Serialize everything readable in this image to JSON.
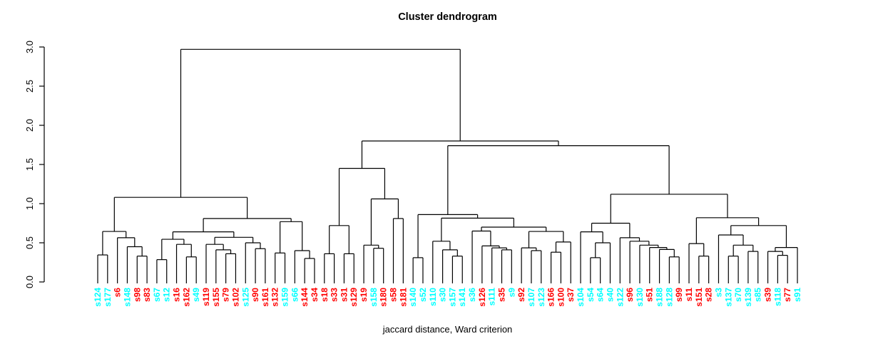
{
  "chart_data": {
    "type": "dendrogram",
    "title": "Cluster dendrogram",
    "caption": "jaccard distance, Ward criterion",
    "ylabel": "",
    "ylim": [
      0.0,
      3.0
    ],
    "y_ticks": [
      {
        "value": 0.0,
        "label": "0.0"
      },
      {
        "value": 0.5,
        "label": "0.5"
      },
      {
        "value": 1.0,
        "label": "1.0"
      },
      {
        "value": 1.5,
        "label": "1.5"
      },
      {
        "value": 2.0,
        "label": "2.0"
      },
      {
        "value": 2.5,
        "label": "2.5"
      },
      {
        "value": 3.0,
        "label": "3.0"
      }
    ],
    "palette": {
      "cyan": "#00ffff",
      "red": "#ff0000",
      "line": "#000000"
    },
    "leaves": [
      {
        "label": "s124",
        "color": "cyan"
      },
      {
        "label": "s177",
        "color": "cyan"
      },
      {
        "label": "s6",
        "color": "red"
      },
      {
        "label": "s148",
        "color": "cyan"
      },
      {
        "label": "s98",
        "color": "red"
      },
      {
        "label": "s83",
        "color": "red"
      },
      {
        "label": "s67",
        "color": "cyan"
      },
      {
        "label": "s12",
        "color": "cyan"
      },
      {
        "label": "s16",
        "color": "red"
      },
      {
        "label": "s162",
        "color": "red"
      },
      {
        "label": "s49",
        "color": "cyan"
      },
      {
        "label": "s119",
        "color": "red"
      },
      {
        "label": "s155",
        "color": "red"
      },
      {
        "label": "s79",
        "color": "red"
      },
      {
        "label": "s102",
        "color": "red"
      },
      {
        "label": "s125",
        "color": "cyan"
      },
      {
        "label": "s90",
        "color": "red"
      },
      {
        "label": "s161",
        "color": "red"
      },
      {
        "label": "s132",
        "color": "red"
      },
      {
        "label": "s159",
        "color": "cyan"
      },
      {
        "label": "s66",
        "color": "cyan"
      },
      {
        "label": "s144",
        "color": "red"
      },
      {
        "label": "s34",
        "color": "red"
      },
      {
        "label": "s18",
        "color": "red"
      },
      {
        "label": "s33",
        "color": "red"
      },
      {
        "label": "s31",
        "color": "red"
      },
      {
        "label": "s129",
        "color": "red"
      },
      {
        "label": "s19",
        "color": "red"
      },
      {
        "label": "s158",
        "color": "cyan"
      },
      {
        "label": "s180",
        "color": "red"
      },
      {
        "label": "s58",
        "color": "red"
      },
      {
        "label": "s181",
        "color": "red"
      },
      {
        "label": "s140",
        "color": "cyan"
      },
      {
        "label": "s52",
        "color": "cyan"
      },
      {
        "label": "s110",
        "color": "cyan"
      },
      {
        "label": "s30",
        "color": "cyan"
      },
      {
        "label": "s157",
        "color": "cyan"
      },
      {
        "label": "s141",
        "color": "cyan"
      },
      {
        "label": "s36",
        "color": "cyan"
      },
      {
        "label": "s126",
        "color": "red"
      },
      {
        "label": "s111",
        "color": "cyan"
      },
      {
        "label": "s35",
        "color": "red"
      },
      {
        "label": "s9",
        "color": "cyan"
      },
      {
        "label": "s92",
        "color": "red"
      },
      {
        "label": "s107",
        "color": "cyan"
      },
      {
        "label": "s123",
        "color": "cyan"
      },
      {
        "label": "s166",
        "color": "red"
      },
      {
        "label": "s100",
        "color": "red"
      },
      {
        "label": "s37",
        "color": "red"
      },
      {
        "label": "s104",
        "color": "cyan"
      },
      {
        "label": "s54",
        "color": "cyan"
      },
      {
        "label": "s64",
        "color": "cyan"
      },
      {
        "label": "s40",
        "color": "cyan"
      },
      {
        "label": "s122",
        "color": "cyan"
      },
      {
        "label": "s96",
        "color": "red"
      },
      {
        "label": "s130",
        "color": "cyan"
      },
      {
        "label": "s51",
        "color": "red"
      },
      {
        "label": "s188",
        "color": "cyan"
      },
      {
        "label": "s128",
        "color": "cyan"
      },
      {
        "label": "s99",
        "color": "red"
      },
      {
        "label": "s11",
        "color": "red"
      },
      {
        "label": "s151",
        "color": "red"
      },
      {
        "label": "s28",
        "color": "red"
      },
      {
        "label": "s3",
        "color": "cyan"
      },
      {
        "label": "s137",
        "color": "cyan"
      },
      {
        "label": "s70",
        "color": "cyan"
      },
      {
        "label": "s139",
        "color": "cyan"
      },
      {
        "label": "s85",
        "color": "cyan"
      },
      {
        "label": "s39",
        "color": "red"
      },
      {
        "label": "s118",
        "color": "cyan"
      },
      {
        "label": "s77",
        "color": "red"
      },
      {
        "label": "s91",
        "color": "cyan"
      }
    ],
    "tree": {
      "h": 2.97,
      "c": [
        {
          "h": 1.08,
          "c": [
            {
              "h": 0.645,
              "c": [
                {
                  "h": 0.345,
                  "c": [
                    "s124",
                    "s177"
                  ]
                },
                {
                  "h": 0.565,
                  "c": [
                    "s6",
                    {
                      "h": 0.45,
                      "c": [
                        "s148",
                        {
                          "h": 0.33,
                          "c": [
                            "s98",
                            "s83"
                          ]
                        }
                      ]
                    }
                  ]
                }
              ]
            },
            {
              "h": 0.81,
              "c": [
                {
                  "h": 0.64,
                  "c": [
                    {
                      "h": 0.545,
                      "c": [
                        {
                          "h": 0.285,
                          "c": [
                            "s67",
                            "s12"
                          ]
                        },
                        {
                          "h": 0.48,
                          "c": [
                            "s16",
                            {
                              "h": 0.32,
                              "c": [
                                "s162",
                                "s49"
                              ]
                            }
                          ]
                        }
                      ]
                    },
                    {
                      "h": 0.57,
                      "c": [
                        {
                          "h": 0.48,
                          "c": [
                            "s119",
                            {
                              "h": 0.41,
                              "c": [
                                "s155",
                                {
                                  "h": 0.36,
                                  "c": [
                                    "s79",
                                    "s102"
                                  ]
                                }
                              ]
                            }
                          ]
                        },
                        {
                          "h": 0.5,
                          "c": [
                            "s125",
                            {
                              "h": 0.425,
                              "c": [
                                "s90",
                                "s161"
                              ]
                            }
                          ]
                        }
                      ]
                    }
                  ]
                },
                {
                  "h": 0.77,
                  "c": [
                    {
                      "h": 0.37,
                      "c": [
                        "s132",
                        "s159"
                      ]
                    },
                    {
                      "h": 0.4,
                      "c": [
                        "s66",
                        {
                          "h": 0.3,
                          "c": [
                            "s144",
                            "s34"
                          ]
                        }
                      ]
                    }
                  ]
                }
              ]
            }
          ]
        },
        {
          "h": 1.8,
          "c": [
            {
              "h": 1.45,
              "c": [
                {
                  "h": 0.72,
                  "c": [
                    {
                      "h": 0.36,
                      "c": [
                        "s18",
                        "s33"
                      ]
                    },
                    {
                      "h": 0.36,
                      "c": [
                        "s31",
                        "s129"
                      ]
                    }
                  ]
                },
                {
                  "h": 1.06,
                  "c": [
                    {
                      "h": 0.47,
                      "c": [
                        "s19",
                        {
                          "h": 0.43,
                          "c": [
                            "s158",
                            "s180"
                          ]
                        }
                      ]
                    },
                    {
                      "h": 0.81,
                      "c": [
                        "s58",
                        "s181"
                      ]
                    }
                  ]
                }
              ]
            },
            {
              "h": 1.74,
              "c": [
                {
                  "h": 0.86,
                  "c": [
                    {
                      "h": 0.31,
                      "c": [
                        "s140",
                        "s52"
                      ]
                    },
                    {
                      "h": 0.815,
                      "c": [
                        {
                          "h": 0.52,
                          "c": [
                            "s110",
                            {
                              "h": 0.41,
                              "c": [
                                "s30",
                                {
                                  "h": 0.33,
                                  "c": [
                                    "s157",
                                    "s141"
                                  ]
                                }
                              ]
                            }
                          ]
                        },
                        {
                          "h": 0.7,
                          "c": [
                            {
                              "h": 0.65,
                              "c": [
                                "s36",
                                {
                                  "h": 0.46,
                                  "c": [
                                    "s126",
                                    {
                                      "h": 0.435,
                                      "c": [
                                        "s111",
                                        {
                                          "h": 0.41,
                                          "c": [
                                            "s35",
                                            "s9"
                                          ]
                                        }
                                      ]
                                    }
                                  ]
                                }
                              ]
                            },
                            {
                              "h": 0.645,
                              "c": [
                                {
                                  "h": 0.435,
                                  "c": [
                                    "s92",
                                    {
                                      "h": 0.4,
                                      "c": [
                                        "s107",
                                        "s123"
                                      ]
                                    }
                                  ]
                                },
                                {
                                  "h": 0.51,
                                  "c": [
                                    {
                                      "h": 0.38,
                                      "c": [
                                        "s166",
                                        "s100"
                                      ]
                                    },
                                    "s37"
                                  ]
                                }
                              ]
                            }
                          ]
                        }
                      ]
                    }
                  ]
                },
                {
                  "h": 1.12,
                  "c": [
                    {
                      "h": 0.75,
                      "c": [
                        {
                          "h": 0.64,
                          "c": [
                            "s104",
                            {
                              "h": 0.5,
                              "c": [
                                {
                                  "h": 0.31,
                                  "c": [
                                    "s54",
                                    "s64"
                                  ]
                                },
                                "s40"
                              ]
                            }
                          ]
                        },
                        {
                          "h": 0.565,
                          "c": [
                            "s122",
                            {
                              "h": 0.52,
                              "c": [
                                "s96",
                                {
                                  "h": 0.47,
                                  "c": [
                                    "s130",
                                    {
                                      "h": 0.44,
                                      "c": [
                                        "s51",
                                        {
                                          "h": 0.415,
                                          "c": [
                                            "s188",
                                            {
                                              "h": 0.32,
                                              "c": [
                                                "s128",
                                                "s99"
                                              ]
                                            }
                                          ]
                                        }
                                      ]
                                    }
                                  ]
                                }
                              ]
                            }
                          ]
                        }
                      ]
                    },
                    {
                      "h": 0.82,
                      "c": [
                        {
                          "h": 0.49,
                          "c": [
                            "s11",
                            {
                              "h": 0.33,
                              "c": [
                                "s151",
                                "s28"
                              ]
                            }
                          ]
                        },
                        {
                          "h": 0.72,
                          "c": [
                            {
                              "h": 0.6,
                              "c": [
                                "s3",
                                {
                                  "h": 0.47,
                                  "c": [
                                    {
                                      "h": 0.33,
                                      "c": [
                                        "s137",
                                        "s70"
                                      ]
                                    },
                                    {
                                      "h": 0.39,
                                      "c": [
                                        "s139",
                                        "s85"
                                      ]
                                    }
                                  ]
                                }
                              ]
                            },
                            {
                              "h": 0.44,
                              "c": [
                                {
                                  "h": 0.39,
                                  "c": [
                                    "s39",
                                    {
                                      "h": 0.34,
                                      "c": [
                                        "s118",
                                        "s77"
                                      ]
                                    }
                                  ]
                                },
                                "s91"
                              ]
                            }
                          ]
                        }
                      ]
                    }
                  ]
                }
              ]
            }
          ]
        }
      ]
    }
  }
}
